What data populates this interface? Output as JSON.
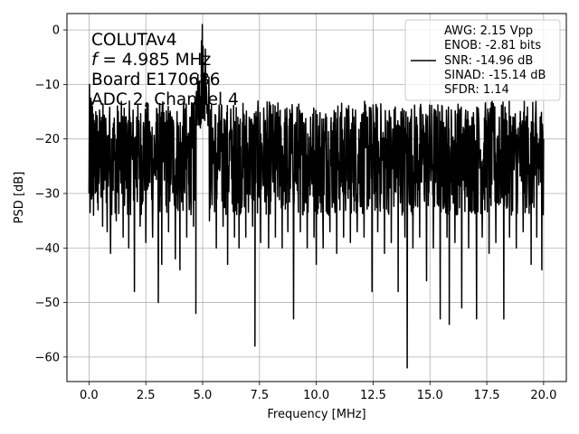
{
  "chart_data": {
    "type": "line",
    "title": "",
    "xlabel": "Frequency [MHz]",
    "ylabel": "PSD [dB]",
    "xlim": [
      -0.97,
      21.0
    ],
    "ylim": [
      -64.5,
      3.0
    ],
    "xticks": [
      0.0,
      2.5,
      5.0,
      7.5,
      10.0,
      12.5,
      15.0,
      17.5,
      20.0
    ],
    "xtick_labels": [
      "0.0",
      "2.5",
      "5.0",
      "7.5",
      "10.0",
      "12.5",
      "15.0",
      "17.5",
      "20.0"
    ],
    "yticks": [
      0,
      -10,
      -20,
      -30,
      -40,
      -50,
      -60
    ],
    "ytick_labels": [
      "0",
      "−10",
      "−20",
      "−30",
      "−40",
      "−50",
      "−60"
    ],
    "grid": true,
    "annotation_lines": [
      "COLUTAv4",
      " = 4.985 MHz",
      "Board E170686",
      "ADC 2, Channel 4"
    ],
    "annotation_italic_prefix": "f",
    "legend": {
      "placement": "top-right",
      "lines": [
        "AWG: 2.15 Vpp",
        "ENOB: -2.81 bits",
        "SNR: -14.96 dB",
        "SINAD: -15.14 dB",
        "SFDR: 1.14"
      ]
    },
    "series": [
      {
        "color": "#000000",
        "baseline": -25.0,
        "noise_range": [
          -34.0,
          -13.0
        ],
        "points": [
          [
            0.0,
            -30.0
          ],
          [
            0.02,
            -10.0
          ],
          [
            0.05,
            -33.5
          ],
          [
            0.08,
            -12.5
          ],
          [
            0.12,
            -31.0
          ],
          [
            0.15,
            -14.0
          ],
          [
            0.2,
            -34.0
          ],
          [
            0.3,
            -15.0
          ],
          [
            0.4,
            -33.0
          ],
          [
            0.55,
            -16.0
          ],
          [
            0.6,
            -36.0
          ],
          [
            0.7,
            -17.0
          ],
          [
            0.8,
            -37.0
          ],
          [
            0.9,
            -16.0
          ],
          [
            0.95,
            -41.0
          ],
          [
            1.05,
            -18.0
          ],
          [
            1.2,
            -35.0
          ],
          [
            1.35,
            -17.0
          ],
          [
            1.5,
            -38.0
          ],
          [
            1.6,
            -16.0
          ],
          [
            1.75,
            -40.0
          ],
          [
            1.85,
            -17.0
          ],
          [
            2.0,
            -48.0
          ],
          [
            2.1,
            -16.0
          ],
          [
            2.25,
            -36.0
          ],
          [
            2.4,
            -17.0
          ],
          [
            2.5,
            -39.0
          ],
          [
            2.65,
            -17.0
          ],
          [
            2.8,
            -38.0
          ],
          [
            2.95,
            -17.0
          ],
          [
            3.05,
            -50.0
          ],
          [
            3.15,
            -16.0
          ],
          [
            3.2,
            -43.0
          ],
          [
            3.35,
            -17.0
          ],
          [
            3.5,
            -37.0
          ],
          [
            3.65,
            -16.0
          ],
          [
            3.8,
            -42.0
          ],
          [
            3.9,
            -17.0
          ],
          [
            4.0,
            -44.0
          ],
          [
            4.15,
            -16.0
          ],
          [
            4.3,
            -38.0
          ],
          [
            4.45,
            -16.0
          ],
          [
            4.6,
            -36.0
          ],
          [
            4.7,
            -22.0
          ],
          [
            4.7,
            -52.0
          ],
          [
            4.8,
            -12.0
          ],
          [
            4.9,
            -18.0
          ],
          [
            4.95,
            -2.0
          ],
          [
            4.985,
            1.0
          ],
          [
            5.02,
            -3.0
          ],
          [
            5.07,
            -8.0
          ],
          [
            5.12,
            -3.5
          ],
          [
            5.18,
            -12.0
          ],
          [
            5.25,
            -16.0
          ],
          [
            5.3,
            -35.0
          ],
          [
            5.45,
            -18.0
          ],
          [
            5.6,
            -40.0
          ],
          [
            5.8,
            -17.0
          ],
          [
            5.9,
            -36.0
          ],
          [
            6.0,
            -18.0
          ],
          [
            6.1,
            -43.0
          ],
          [
            6.25,
            -18.0
          ],
          [
            6.4,
            -38.0
          ],
          [
            6.55,
            -16.0
          ],
          [
            6.6,
            -40.0
          ],
          [
            6.75,
            -17.0
          ],
          [
            6.9,
            -38.0
          ],
          [
            7.05,
            -16.0
          ],
          [
            7.2,
            -36.0
          ],
          [
            7.3,
            -20.0
          ],
          [
            7.3,
            -58.0
          ],
          [
            7.4,
            -16.0
          ],
          [
            7.55,
            -39.0
          ],
          [
            7.7,
            -17.0
          ],
          [
            7.9,
            -40.0
          ],
          [
            8.05,
            -17.0
          ],
          [
            8.2,
            -38.0
          ],
          [
            8.35,
            -16.0
          ],
          [
            8.5,
            -40.0
          ],
          [
            8.6,
            -17.0
          ],
          [
            8.75,
            -37.0
          ],
          [
            8.85,
            -18.0
          ],
          [
            9.0,
            -53.0
          ],
          [
            9.1,
            -17.0
          ],
          [
            9.3,
            -37.0
          ],
          [
            9.45,
            -17.0
          ],
          [
            9.6,
            -40.0
          ],
          [
            9.75,
            -16.0
          ],
          [
            9.9,
            -38.0
          ],
          [
            10.0,
            -43.0
          ],
          [
            10.15,
            -17.0
          ],
          [
            10.3,
            -40.0
          ],
          [
            10.45,
            -16.0
          ],
          [
            10.6,
            -37.0
          ],
          [
            10.75,
            -17.0
          ],
          [
            10.9,
            -41.0
          ],
          [
            11.05,
            -16.0
          ],
          [
            11.2,
            -38.0
          ],
          [
            11.35,
            -17.0
          ],
          [
            11.5,
            -39.0
          ],
          [
            11.65,
            -16.0
          ],
          [
            11.8,
            -37.0
          ],
          [
            11.95,
            -17.0
          ],
          [
            12.1,
            -38.0
          ],
          [
            12.25,
            -16.0
          ],
          [
            12.45,
            -48.0
          ],
          [
            12.55,
            -17.0
          ],
          [
            12.7,
            -37.0
          ],
          [
            12.85,
            -16.0
          ],
          [
            13.0,
            -41.0
          ],
          [
            13.15,
            -17.0
          ],
          [
            13.3,
            -39.0
          ],
          [
            13.45,
            -16.0
          ],
          [
            13.6,
            -48.0
          ],
          [
            13.75,
            -17.0
          ],
          [
            13.9,
            -38.0
          ],
          [
            13.92,
            -18.0
          ],
          [
            14.0,
            -62.0
          ],
          [
            14.1,
            -17.0
          ],
          [
            14.25,
            -40.0
          ],
          [
            14.4,
            -16.0
          ],
          [
            14.55,
            -38.0
          ],
          [
            14.7,
            -17.0
          ],
          [
            14.85,
            -46.0
          ],
          [
            15.0,
            -17.0
          ],
          [
            15.15,
            -40.0
          ],
          [
            15.3,
            -16.0
          ],
          [
            15.45,
            -53.0
          ],
          [
            15.6,
            -17.0
          ],
          [
            15.75,
            -38.0
          ],
          [
            15.85,
            -54.0
          ],
          [
            15.95,
            -17.0
          ],
          [
            16.1,
            -39.0
          ],
          [
            16.25,
            -16.0
          ],
          [
            16.4,
            -51.0
          ],
          [
            16.55,
            -17.0
          ],
          [
            16.7,
            -40.0
          ],
          [
            16.85,
            -16.0
          ],
          [
            17.05,
            -53.0
          ],
          [
            17.15,
            -17.0
          ],
          [
            17.3,
            -38.0
          ],
          [
            17.45,
            -16.0
          ],
          [
            17.6,
            -41.0
          ],
          [
            17.75,
            -17.0
          ],
          [
            17.9,
            -39.0
          ],
          [
            18.05,
            -16.0
          ],
          [
            18.25,
            -53.0
          ],
          [
            18.35,
            -17.0
          ],
          [
            18.5,
            -38.0
          ],
          [
            18.65,
            -16.0
          ],
          [
            18.8,
            -40.0
          ],
          [
            18.95,
            -17.0
          ],
          [
            19.1,
            -37.0
          ],
          [
            19.25,
            -16.0
          ],
          [
            19.45,
            -43.0
          ],
          [
            19.55,
            -17.0
          ],
          [
            19.7,
            -38.0
          ],
          [
            19.85,
            -16.0
          ],
          [
            19.92,
            -44.0
          ],
          [
            20.0,
            -20.0
          ]
        ]
      }
    ]
  }
}
